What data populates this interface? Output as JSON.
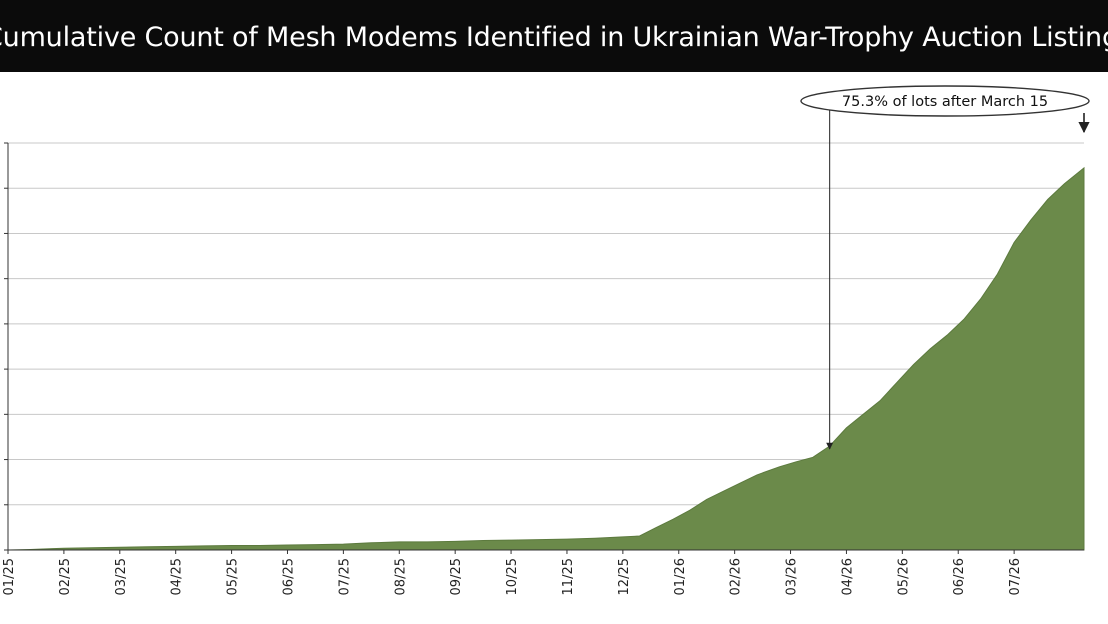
{
  "chart_data": {
    "type": "area",
    "title": "Cumulative Count of Mesh Modems Identified in Ukrainian War-Trophy Auction Listings",
    "xlabel": "",
    "ylabel": "",
    "x_tick_labels": [
      "01/25",
      "02/25",
      "03/25",
      "04/25",
      "05/25",
      "06/25",
      "07/25",
      "08/25",
      "09/25",
      "10/25",
      "11/25",
      "12/25",
      "01/26",
      "02/26",
      "03/26",
      "04/26",
      "05/26",
      "06/26",
      "07/26"
    ],
    "ylim": [
      0,
      9
    ],
    "grid": true,
    "y_tick_labels_visible": false,
    "series": [
      {
        "color": "#6b8a4a",
        "points": [
          [
            0.0,
            0.0
          ],
          [
            0.4,
            0.01
          ],
          [
            0.8,
            0.03
          ],
          [
            1.0,
            0.04
          ],
          [
            1.5,
            0.05
          ],
          [
            2.0,
            0.06
          ],
          [
            2.5,
            0.07
          ],
          [
            3.0,
            0.08
          ],
          [
            3.5,
            0.09
          ],
          [
            4.0,
            0.1
          ],
          [
            4.5,
            0.1
          ],
          [
            5.0,
            0.11
          ],
          [
            5.5,
            0.12
          ],
          [
            6.0,
            0.13
          ],
          [
            6.5,
            0.16
          ],
          [
            7.0,
            0.18
          ],
          [
            7.5,
            0.18
          ],
          [
            8.0,
            0.19
          ],
          [
            8.5,
            0.21
          ],
          [
            9.0,
            0.22
          ],
          [
            9.5,
            0.23
          ],
          [
            10.0,
            0.24
          ],
          [
            10.5,
            0.26
          ],
          [
            11.0,
            0.29
          ],
          [
            11.3,
            0.31
          ],
          [
            11.6,
            0.5
          ],
          [
            11.9,
            0.68
          ],
          [
            12.2,
            0.88
          ],
          [
            12.5,
            1.12
          ],
          [
            12.8,
            1.3
          ],
          [
            13.1,
            1.48
          ],
          [
            13.4,
            1.66
          ],
          [
            13.8,
            1.84
          ],
          [
            14.1,
            1.95
          ],
          [
            14.4,
            2.05
          ],
          [
            14.7,
            2.3
          ],
          [
            15.0,
            2.7
          ],
          [
            15.3,
            3.0
          ],
          [
            15.6,
            3.3
          ],
          [
            15.9,
            3.7
          ],
          [
            16.2,
            4.1
          ],
          [
            16.5,
            4.45
          ],
          [
            16.8,
            4.75
          ],
          [
            17.1,
            5.1
          ],
          [
            17.4,
            5.55
          ],
          [
            17.7,
            6.1
          ],
          [
            18.0,
            6.8
          ],
          [
            18.3,
            7.3
          ],
          [
            18.6,
            7.75
          ],
          [
            18.9,
            8.1
          ],
          [
            19.25,
            8.45
          ]
        ]
      }
    ],
    "annotation": {
      "text": "75.3% of lots after March 15",
      "x": 14.7
    }
  }
}
